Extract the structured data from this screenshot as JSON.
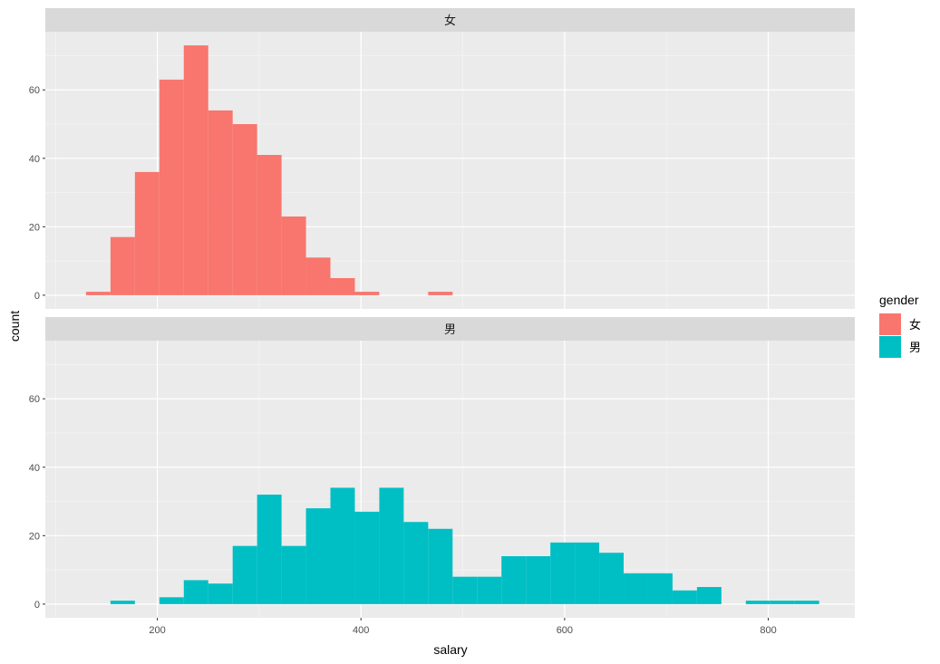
{
  "chart_data": {
    "type": "bar",
    "subtype": "faceted-histogram",
    "xlabel": "salary",
    "ylabel": "count",
    "xlim": [
      90,
      885
    ],
    "ylim": [
      -4,
      77
    ],
    "x_ticks": [
      200,
      400,
      600,
      800
    ],
    "y_ticks": [
      0,
      20,
      40,
      60
    ],
    "grid": true,
    "legend": {
      "title": "gender",
      "position": "right"
    },
    "bin_width": 24,
    "series": [
      {
        "name": "女",
        "color": "#F8766D",
        "bins": [
          {
            "x0": 130,
            "x1": 154,
            "count": 1
          },
          {
            "x0": 154,
            "x1": 178,
            "count": 17
          },
          {
            "x0": 178,
            "x1": 202,
            "count": 36
          },
          {
            "x0": 202,
            "x1": 226,
            "count": 63
          },
          {
            "x0": 226,
            "x1": 250,
            "count": 73
          },
          {
            "x0": 250,
            "x1": 274,
            "count": 54
          },
          {
            "x0": 274,
            "x1": 298,
            "count": 50
          },
          {
            "x0": 298,
            "x1": 322,
            "count": 41
          },
          {
            "x0": 322,
            "x1": 346,
            "count": 23
          },
          {
            "x0": 346,
            "x1": 370,
            "count": 11
          },
          {
            "x0": 370,
            "x1": 394,
            "count": 5
          },
          {
            "x0": 394,
            "x1": 418,
            "count": 1
          },
          {
            "x0": 466,
            "x1": 490,
            "count": 1
          }
        ]
      },
      {
        "name": "男",
        "color": "#00BFC4",
        "bins": [
          {
            "x0": 154,
            "x1": 178,
            "count": 1
          },
          {
            "x0": 202,
            "x1": 226,
            "count": 2
          },
          {
            "x0": 226,
            "x1": 250,
            "count": 7
          },
          {
            "x0": 250,
            "x1": 274,
            "count": 6
          },
          {
            "x0": 274,
            "x1": 298,
            "count": 17
          },
          {
            "x0": 298,
            "x1": 322,
            "count": 32
          },
          {
            "x0": 322,
            "x1": 346,
            "count": 17
          },
          {
            "x0": 346,
            "x1": 370,
            "count": 28
          },
          {
            "x0": 370,
            "x1": 394,
            "count": 34
          },
          {
            "x0": 394,
            "x1": 418,
            "count": 27
          },
          {
            "x0": 418,
            "x1": 442,
            "count": 34
          },
          {
            "x0": 442,
            "x1": 466,
            "count": 24
          },
          {
            "x0": 466,
            "x1": 490,
            "count": 22
          },
          {
            "x0": 490,
            "x1": 514,
            "count": 8
          },
          {
            "x0": 514,
            "x1": 538,
            "count": 8
          },
          {
            "x0": 538,
            "x1": 562,
            "count": 14
          },
          {
            "x0": 562,
            "x1": 586,
            "count": 14
          },
          {
            "x0": 586,
            "x1": 610,
            "count": 18
          },
          {
            "x0": 610,
            "x1": 634,
            "count": 18
          },
          {
            "x0": 634,
            "x1": 658,
            "count": 15
          },
          {
            "x0": 658,
            "x1": 682,
            "count": 9
          },
          {
            "x0": 682,
            "x1": 706,
            "count": 9
          },
          {
            "x0": 706,
            "x1": 730,
            "count": 4
          },
          {
            "x0": 730,
            "x1": 754,
            "count": 5
          },
          {
            "x0": 778,
            "x1": 802,
            "count": 1
          },
          {
            "x0": 802,
            "x1": 826,
            "count": 1
          },
          {
            "x0": 826,
            "x1": 850,
            "count": 1
          }
        ]
      }
    ]
  }
}
